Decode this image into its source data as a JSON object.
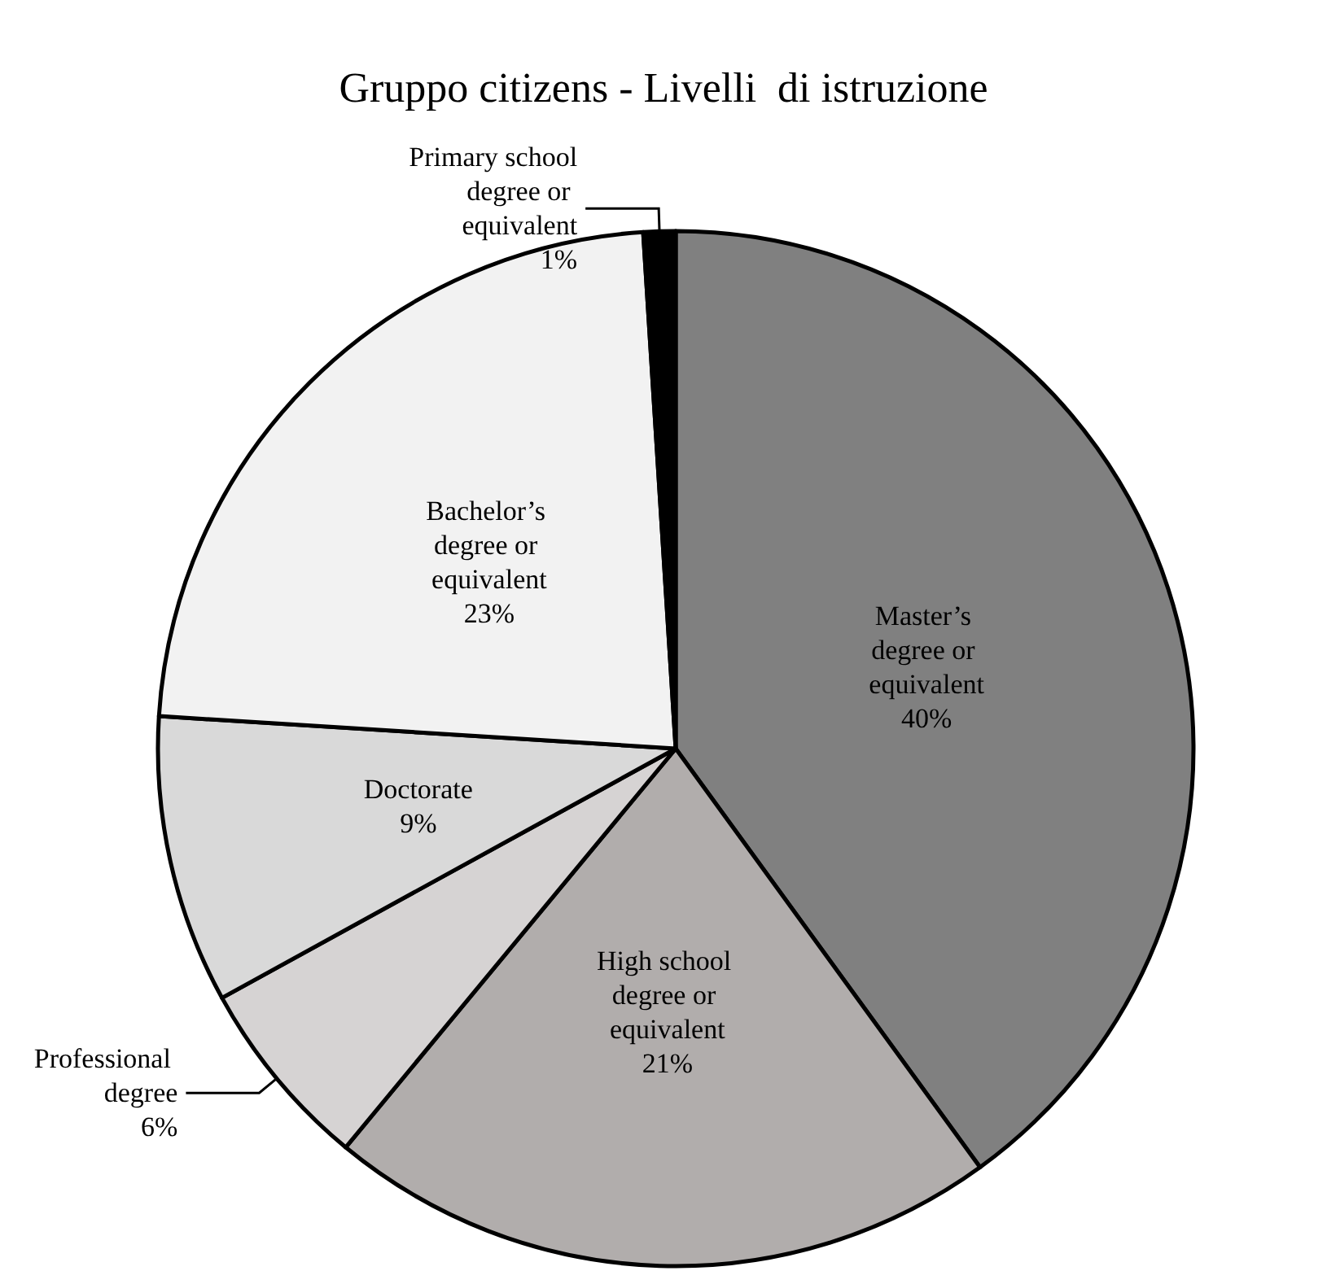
{
  "chart_data": {
    "type": "pie",
    "title": "Gruppo citizens - Livelli  di istruzione",
    "categories": [
      "Master’s degree or equivalent",
      "High school degree or equivalent",
      "Professional degree",
      "Doctorate",
      "Bachelor’s degree or equivalent",
      "Primary school degree or equivalent"
    ],
    "values": [
      40,
      21,
      6,
      9,
      23,
      1
    ],
    "value_labels": [
      "40%",
      "21%",
      "6%",
      "9%",
      "23%",
      "1%"
    ],
    "colors": [
      "#808080",
      "#b1adac",
      "#d6d3d3",
      "#d9d9d9",
      "#f2f2f2",
      "#000000"
    ],
    "legend": false
  }
}
